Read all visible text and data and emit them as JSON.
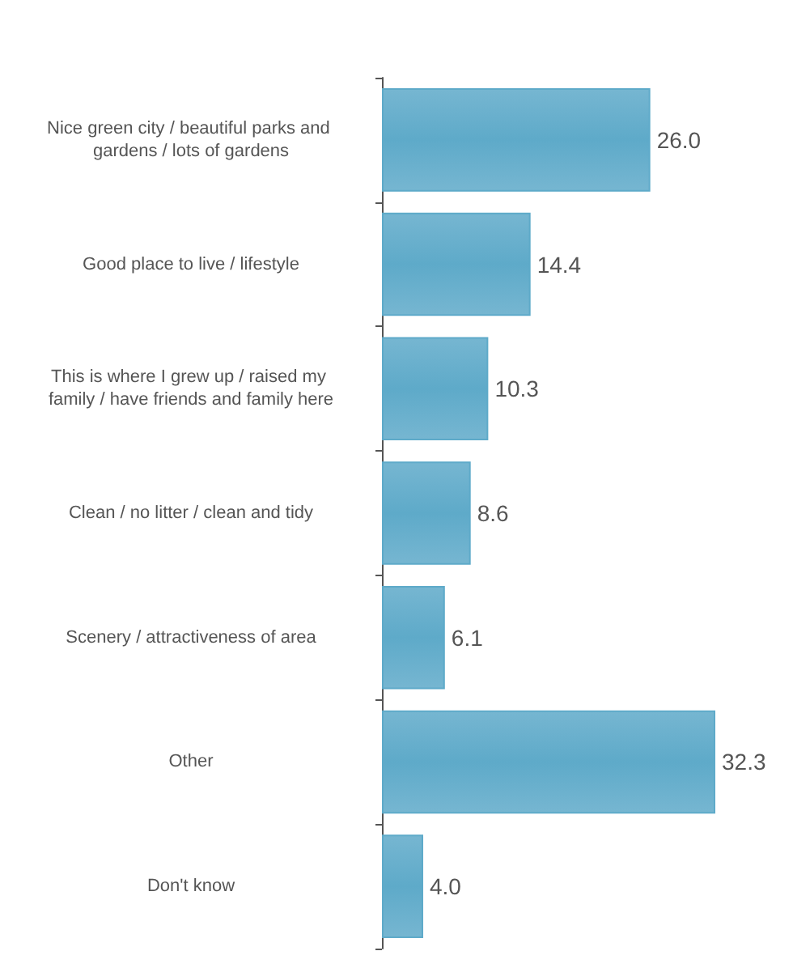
{
  "chart_data": {
    "type": "bar",
    "orientation": "horizontal",
    "categories": [
      "Nice green city / beautiful parks and gardens / lots of gardens",
      "Good place to live / lifestyle",
      "This is where I grew up / raised my family / have friends and family here",
      "Clean / no litter / clean and tidy",
      "Scenery / attractiveness of area",
      "Other",
      "Don't know"
    ],
    "values": [
      26.0,
      14.4,
      10.3,
      8.6,
      6.1,
      32.3,
      4.0
    ],
    "value_labels": [
      "26.0",
      "14.4",
      "10.3",
      "8.6",
      "6.1",
      "32.3",
      "4.0"
    ],
    "color": "#5eaac9"
  }
}
